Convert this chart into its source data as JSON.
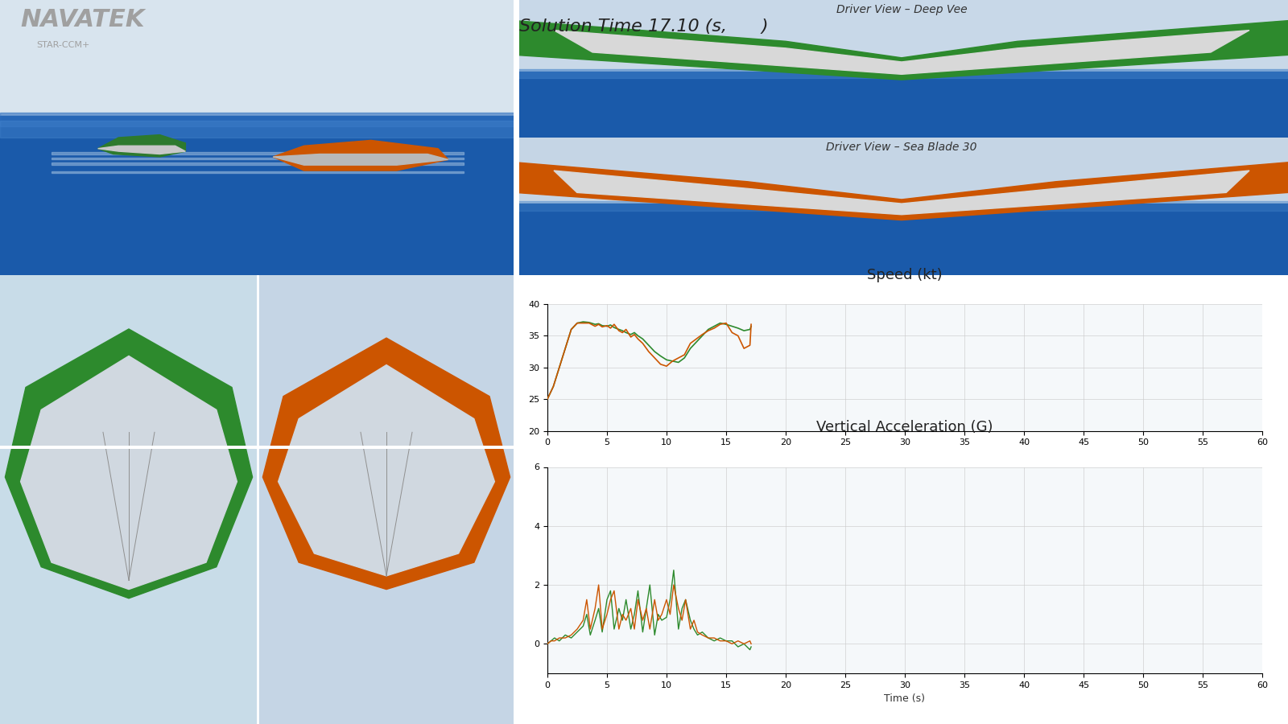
{
  "title_main": "Solution Time 17.10 (s,      )",
  "navatek_text": "NAVATEK",
  "starccm_text": "STAR-CCM+",
  "driver_view_deep_vee": "Driver View – Deep Vee",
  "driver_view_seablade": "Driver View – Sea Blade 30",
  "speed_title": "Speed (kt)",
  "accel_title": "Vertical Acceleration (G)",
  "time_label": "Time (s)",
  "speed_ylim": [
    20,
    40
  ],
  "speed_yticks": [
    20,
    25,
    30,
    35,
    40
  ],
  "accel_ylim": [
    -1,
    6
  ],
  "accel_yticks": [
    0,
    2,
    4,
    6
  ],
  "xlim": [
    0,
    60
  ],
  "xticks": [
    0,
    5,
    10,
    15,
    20,
    25,
    30,
    35,
    40,
    45,
    50,
    55,
    60
  ],
  "color_green": "#2d8a2d",
  "color_orange": "#cc5500",
  "grid_color": "#cccccc",
  "speed_data_green_x": [
    0,
    0.5,
    1.0,
    1.5,
    2.0,
    2.5,
    3.0,
    3.5,
    4.0,
    4.3,
    4.6,
    5.0,
    5.3,
    5.6,
    6.0,
    6.3,
    6.6,
    7.0,
    7.3,
    7.6,
    8.0,
    8.5,
    9.0,
    9.5,
    10.0,
    10.5,
    11.0,
    11.5,
    12.0,
    12.5,
    13.0,
    13.5,
    14.0,
    14.5,
    15.0,
    15.5,
    16.0,
    16.5,
    17.0,
    17.1
  ],
  "speed_data_green_y": [
    25,
    27,
    30,
    33,
    36,
    37,
    37.2,
    37.1,
    36.8,
    36.9,
    36.6,
    36.5,
    36.7,
    36.3,
    36.0,
    35.8,
    35.5,
    35.2,
    35.5,
    35.0,
    34.5,
    33.5,
    32.5,
    31.8,
    31.2,
    31.0,
    30.8,
    31.5,
    33.0,
    34.0,
    35.0,
    36.0,
    36.5,
    37.0,
    36.8,
    36.5,
    36.2,
    35.8,
    36.0,
    36.5
  ],
  "speed_data_orange_x": [
    0,
    0.5,
    1.0,
    1.5,
    2.0,
    2.5,
    3.0,
    3.5,
    4.0,
    4.3,
    4.6,
    5.0,
    5.3,
    5.6,
    6.0,
    6.3,
    6.6,
    7.0,
    7.3,
    7.6,
    8.0,
    8.5,
    9.0,
    9.5,
    10.0,
    10.5,
    11.0,
    11.5,
    12.0,
    12.5,
    13.0,
    13.5,
    14.0,
    14.5,
    15.0,
    15.5,
    16.0,
    16.5,
    17.0,
    17.1
  ],
  "speed_data_orange_y": [
    25,
    27,
    30,
    33,
    36,
    37,
    37.0,
    37.0,
    36.5,
    36.8,
    36.4,
    36.6,
    36.2,
    36.8,
    35.8,
    35.5,
    36.0,
    34.8,
    35.2,
    34.5,
    33.8,
    32.5,
    31.5,
    30.5,
    30.2,
    31.0,
    31.5,
    32.0,
    33.8,
    34.5,
    35.2,
    35.8,
    36.2,
    36.8,
    37.0,
    35.5,
    35.0,
    33.0,
    33.5,
    36.8
  ],
  "accel_data_green_x": [
    0,
    0.3,
    0.6,
    1.0,
    1.5,
    2.0,
    2.5,
    3.0,
    3.3,
    3.6,
    4.0,
    4.3,
    4.6,
    5.0,
    5.3,
    5.6,
    6.0,
    6.3,
    6.6,
    7.0,
    7.3,
    7.6,
    8.0,
    8.3,
    8.6,
    9.0,
    9.3,
    9.6,
    10.0,
    10.3,
    10.6,
    11.0,
    11.3,
    11.6,
    12.0,
    12.3,
    12.6,
    13.0,
    13.5,
    14.0,
    14.5,
    15.0,
    15.5,
    16.0,
    16.5,
    17.0,
    17.1
  ],
  "accel_data_green_y": [
    0,
    0.1,
    0.2,
    0.1,
    0.3,
    0.2,
    0.4,
    0.6,
    1.0,
    0.3,
    0.8,
    1.2,
    0.4,
    1.5,
    1.8,
    0.5,
    1.2,
    0.8,
    1.5,
    0.5,
    1.0,
    1.8,
    0.4,
    1.2,
    2.0,
    0.3,
    1.0,
    0.8,
    0.9,
    1.5,
    2.5,
    0.5,
    1.2,
    1.5,
    0.8,
    0.5,
    0.3,
    0.4,
    0.2,
    0.1,
    0.2,
    0.1,
    0.1,
    -0.1,
    0.0,
    -0.2,
    -0.1
  ],
  "accel_data_orange_x": [
    0,
    0.3,
    0.6,
    1.0,
    1.5,
    2.0,
    2.5,
    3.0,
    3.3,
    3.6,
    4.0,
    4.3,
    4.6,
    5.0,
    5.3,
    5.6,
    6.0,
    6.3,
    6.6,
    7.0,
    7.3,
    7.6,
    8.0,
    8.3,
    8.6,
    9.0,
    9.3,
    9.6,
    10.0,
    10.3,
    10.6,
    11.0,
    11.3,
    11.6,
    12.0,
    12.3,
    12.6,
    13.0,
    13.5,
    14.0,
    14.5,
    15.0,
    15.5,
    16.0,
    16.5,
    17.0,
    17.1
  ],
  "accel_data_orange_y": [
    0,
    0.1,
    0.1,
    0.2,
    0.2,
    0.3,
    0.5,
    0.8,
    1.5,
    0.5,
    1.2,
    2.0,
    0.5,
    1.0,
    1.5,
    1.8,
    0.5,
    1.0,
    0.8,
    1.2,
    0.5,
    1.5,
    0.8,
    1.2,
    0.5,
    1.5,
    0.8,
    1.0,
    1.5,
    1.0,
    2.0,
    1.2,
    0.8,
    1.5,
    0.5,
    0.8,
    0.4,
    0.3,
    0.2,
    0.2,
    0.1,
    0.1,
    0.0,
    0.1,
    0.0,
    0.1,
    0.0
  ]
}
